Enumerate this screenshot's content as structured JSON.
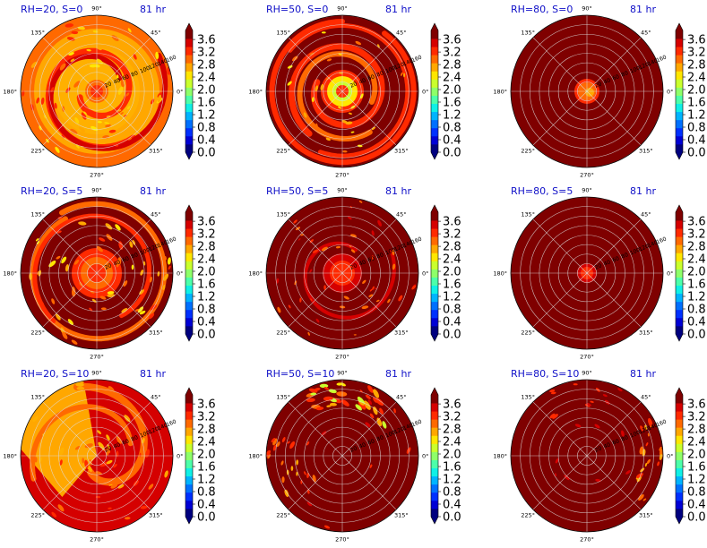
{
  "figure": {
    "panels": [
      {
        "row": 0,
        "col": 0,
        "title": "RH=20, S=0",
        "time_label": "81 hr",
        "radial_labels": [
          "20",
          "40",
          "60",
          "80",
          "100",
          "120",
          "140",
          "160"
        ]
      },
      {
        "row": 0,
        "col": 1,
        "title": "RH=50, S=0",
        "time_label": "81 hr",
        "radial_labels": [
          "20",
          "40",
          "60",
          "80",
          "100",
          "120",
          "140",
          "160"
        ]
      },
      {
        "row": 0,
        "col": 2,
        "title": "RH=80, S=0",
        "time_label": "81 hr",
        "radial_labels": [
          "20",
          "40",
          "60",
          "80",
          "100",
          "120",
          "140",
          "160"
        ]
      },
      {
        "row": 1,
        "col": 0,
        "title": "RH=20, S=5",
        "time_label": "81 hr",
        "radial_labels": [
          "20",
          "40",
          "60",
          "80",
          "100",
          "120",
          "140",
          "160"
        ]
      },
      {
        "row": 1,
        "col": 1,
        "title": "RH=50, S=5",
        "time_label": "81 hr",
        "radial_labels": [
          "20",
          "40",
          "60",
          "80",
          "100",
          "120",
          "140",
          "160"
        ]
      },
      {
        "row": 1,
        "col": 2,
        "title": "RH=80, S=5",
        "time_label": "81 hr",
        "radial_labels": [
          "20",
          "40",
          "60",
          "80",
          "100",
          "120",
          "140",
          "160"
        ]
      },
      {
        "row": 2,
        "col": 0,
        "title": "RH=20, S=10",
        "time_label": "81 hr",
        "radial_labels": [
          "20",
          "40",
          "60",
          "80",
          "100",
          "120",
          "140",
          "160"
        ]
      },
      {
        "row": 2,
        "col": 1,
        "title": "RH=50, S=10",
        "time_label": "81 hr",
        "radial_labels": [
          "20",
          "40",
          "60",
          "80",
          "100",
          "120",
          "140",
          "160"
        ]
      },
      {
        "row": 2,
        "col": 2,
        "title": "RH=80, S=10",
        "time_label": "81 hr",
        "radial_labels": [
          "20",
          "40",
          "60",
          "80",
          "100",
          "120",
          "140",
          "160"
        ]
      }
    ]
  },
  "chart_data": {
    "type": "heatmap",
    "projection": "polar",
    "grid": true,
    "angle_ticks": [
      "0°",
      "45°",
      "90°",
      "135°",
      "180°",
      "225°",
      "270°",
      "315°"
    ],
    "radial_ticks": [
      20,
      40,
      60,
      80,
      100,
      120,
      140,
      160
    ],
    "rows": [
      "S=0",
      "S=5",
      "S=10"
    ],
    "columns": [
      "RH=20",
      "RH=50",
      "RH=80"
    ],
    "colorbar": {
      "min": 0.0,
      "max": 3.6,
      "extend": "both",
      "ticks": [
        "0.0",
        "0.4",
        "0.8",
        "1.2",
        "1.6",
        "2.0",
        "2.4",
        "2.8",
        "3.2",
        "3.6"
      ],
      "colormap": [
        "#00007f",
        "#0000d5",
        "#0030ff",
        "#0070ff",
        "#00b4ff",
        "#10f0e6",
        "#4cffaa",
        "#8eff69",
        "#caff2c",
        "#ffe600",
        "#ffa700",
        "#ff6900",
        "#ff2a00",
        "#d50000",
        "#7f0000"
      ],
      "under_color": "#00007f",
      "over_color": "#7f0000"
    },
    "panel_fields": [
      {
        "title": "RH=20, S=0",
        "background": "#800000",
        "description": "broad orange spiral field with yellow patches and eye"
      },
      {
        "title": "RH=50, S=0",
        "background": "#800000",
        "description": "red spiral bands with bright center"
      },
      {
        "title": "RH=80, S=0",
        "background": "#800000",
        "description": "uniform dark red with small orange center"
      },
      {
        "title": "RH=20, S=5",
        "background": "#800000",
        "description": "scattered orange spiral bands"
      },
      {
        "title": "RH=50, S=5",
        "background": "#800000",
        "description": "scattered red patches"
      },
      {
        "title": "RH=80, S=5",
        "background": "#800000",
        "description": "uniform dark red with small red center"
      },
      {
        "title": "RH=20, S=10",
        "background": "#800000",
        "description": "large orange region on upper-left half"
      },
      {
        "title": "RH=50, S=10",
        "background": "#800000",
        "description": "scattered orange and yellow patches north"
      },
      {
        "title": "RH=80, S=10",
        "background": "#800000",
        "description": "red patches near east edge"
      }
    ]
  }
}
